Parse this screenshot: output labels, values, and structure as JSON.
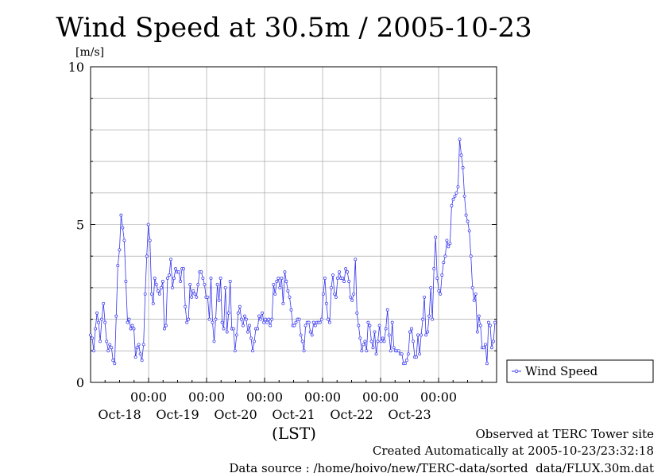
{
  "chart_data": {
    "type": "line",
    "title": "Wind Speed at 30.5m / 2005-10-23",
    "ylabel": "[m/s]",
    "xlabel": "(LST)",
    "ylim": [
      0,
      10
    ],
    "yticks": [
      "0",
      "5",
      "10"
    ],
    "xticks": [
      {
        "time": "00:00",
        "date": "Oct-18",
        "hour": 24
      },
      {
        "time": "00:00",
        "date": "Oct-19",
        "hour": 48
      },
      {
        "time": "00:00",
        "date": "Oct-20",
        "hour": 72
      },
      {
        "time": "00:00",
        "date": "Oct-21",
        "hour": 96
      },
      {
        "time": "00:00",
        "date": "Oct-22",
        "hour": 120
      },
      {
        "time": "00:00",
        "date": "Oct-23",
        "hour": 144
      }
    ],
    "xlim_hours": [
      0,
      168
    ],
    "grid": true,
    "legend": {
      "position": "right",
      "entries": [
        "Wind Speed"
      ]
    },
    "series": [
      {
        "name": "Wind Speed",
        "color": "#3333ee",
        "interval_hours": 1,
        "values": [
          1.5,
          1.4,
          1.0,
          1.7,
          2.2,
          1.9,
          1.3,
          2.0,
          2.5,
          1.9,
          1.3,
          1.0,
          1.2,
          1.1,
          0.7,
          0.6,
          2.1,
          3.7,
          4.2,
          5.3,
          4.9,
          4.5,
          3.2,
          1.9,
          2.0,
          1.7,
          1.8,
          1.7,
          0.8,
          1.1,
          1.2,
          0.9,
          0.7,
          1.2,
          2.8,
          4.0,
          5.0,
          4.5,
          2.8,
          2.5,
          3.3,
          3.1,
          2.9,
          2.8,
          3.0,
          3.2,
          1.7,
          1.8,
          3.3,
          3.4,
          3.9,
          3.0,
          3.3,
          3.6,
          3.5,
          3.5,
          3.2,
          3.6,
          3.6,
          2.4,
          1.9,
          2.0,
          3.1,
          2.7,
          2.9,
          2.8,
          2.7,
          3.1,
          3.5,
          3.5,
          3.3,
          3.1,
          2.7,
          2.7,
          2.0,
          3.3,
          1.9,
          1.3,
          2.0,
          3.1,
          2.6,
          3.3,
          1.9,
          1.7,
          3.0,
          1.6,
          2.2,
          3.2,
          1.7,
          1.7,
          1.0,
          1.5,
          2.2,
          2.4,
          2.0,
          1.8,
          2.1,
          2.0,
          1.6,
          1.8,
          1.4,
          1.0,
          1.3,
          1.7,
          1.7,
          2.1,
          2.0,
          2.2,
          1.9,
          2.0,
          1.9,
          2.0,
          1.8,
          2.0,
          3.1,
          2.8,
          3.2,
          3.3,
          3.0,
          3.3,
          2.5,
          3.5,
          3.2,
          2.9,
          2.7,
          2.3,
          1.8,
          1.8,
          1.9,
          2.0,
          2.0,
          1.5,
          1.3,
          1.0,
          1.8,
          1.9,
          1.9,
          1.6,
          1.5,
          1.9,
          1.8,
          1.9,
          1.9,
          1.9,
          2.0,
          2.8,
          3.3,
          2.5,
          2.0,
          1.9,
          3.0,
          3.4,
          2.8,
          2.7,
          3.3,
          3.5,
          3.3,
          3.3,
          3.2,
          3.6,
          3.5,
          3.2,
          2.7,
          2.6,
          2.8,
          3.9,
          2.2,
          1.8,
          1.4,
          1.0,
          1.2,
          1.3,
          1.0,
          1.9,
          1.8,
          1.3,
          1.1,
          1.6,
          0.9,
          1.3,
          1.8,
          1.3,
          1.4,
          1.3,
          1.7,
          2.3,
          1.5,
          1.0,
          1.9,
          1.1,
          1.0,
          1.0,
          1.0,
          0.9,
          0.9,
          0.6,
          0.6,
          0.7,
          0.9,
          1.6,
          1.7,
          1.3,
          0.8,
          0.8,
          1.5,
          0.9,
          1.5,
          2.0,
          2.7,
          1.5,
          1.6,
          2.1,
          3.0,
          2.0,
          3.6,
          4.6,
          3.3,
          2.9,
          2.8,
          3.4,
          3.8,
          4.0,
          4.5,
          4.3,
          4.4,
          5.6,
          5.8,
          5.9,
          6.0,
          6.2,
          7.7,
          7.2,
          6.8,
          5.9,
          5.3,
          5.1,
          4.8,
          4.0,
          3.0,
          2.6,
          2.8,
          1.6,
          2.1,
          1.8,
          1.1,
          1.1,
          1.2,
          0.6,
          1.9,
          1.8,
          1.1,
          1.3,
          1.9
        ]
      }
    ],
    "footer": {
      "site": "Observed at TERC Tower site",
      "created": "Created Automatically at 2005-10-23/23:32:18",
      "source": "Data source : /home/hoivo/new/TERC-data/sorted  data/FLUX.30m.dat"
    }
  }
}
